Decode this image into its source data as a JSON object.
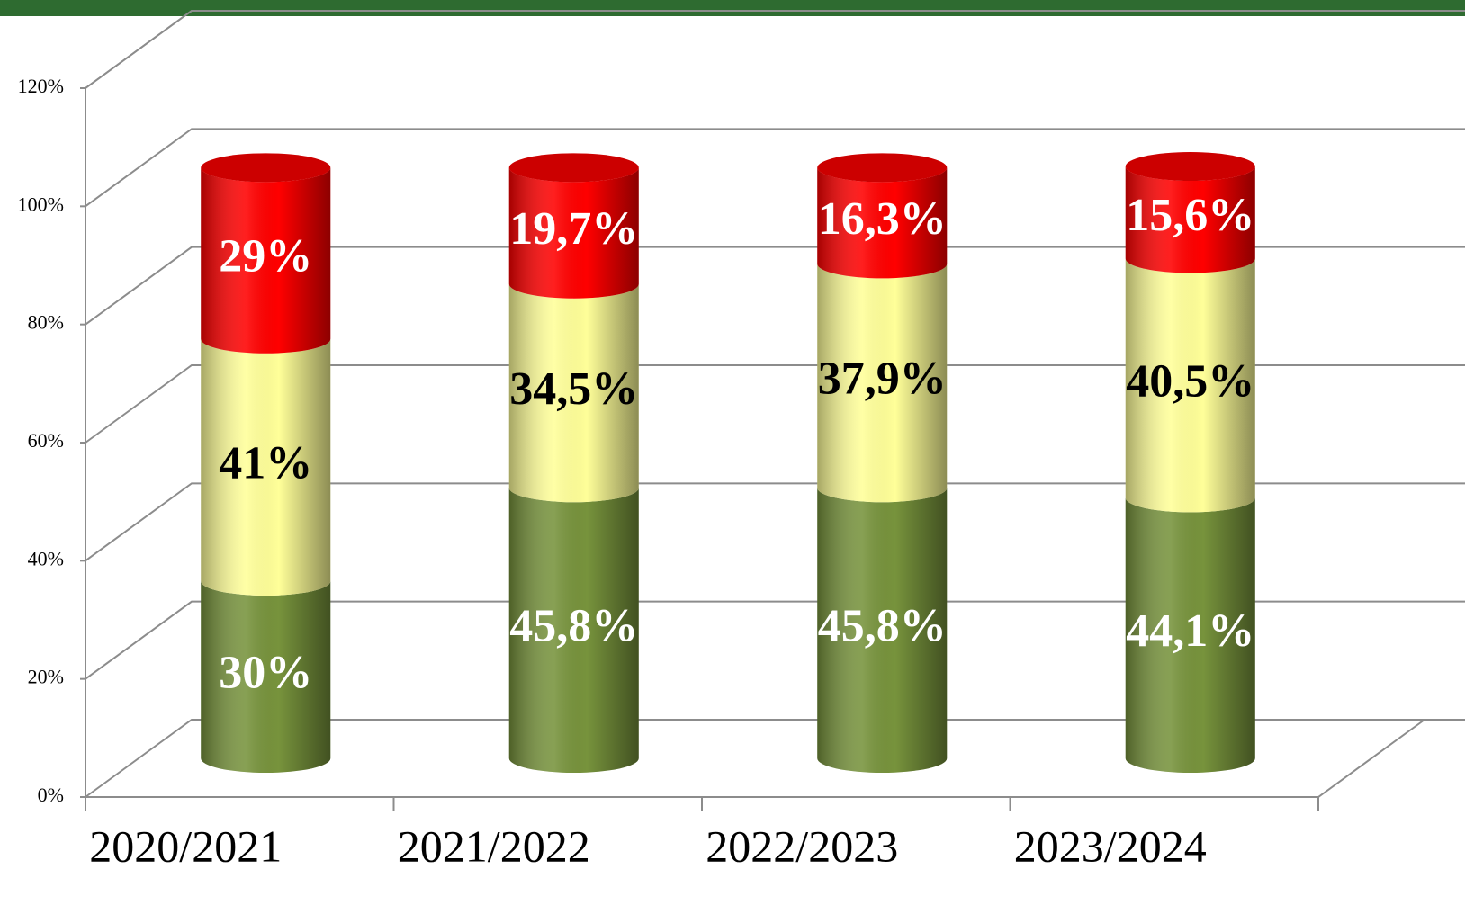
{
  "chart_data": {
    "type": "bar3d-stacked",
    "categories": [
      "2020/2021",
      "2021/2022",
      "2022/2023",
      "2023/2024"
    ],
    "series": [
      {
        "color": "#77933c",
        "values": [
          30,
          45.8,
          45.8,
          44.1
        ],
        "value_labels": [
          "30%",
          "45,8%",
          "45,8%",
          "44,1%"
        ],
        "label_color": "#ffffff"
      },
      {
        "color": "#ffff99",
        "values": [
          41,
          34.5,
          37.9,
          40.5
        ],
        "value_labels": [
          "41%",
          "34,5%",
          "37,9%",
          "40,5%"
        ],
        "label_color": "#000000"
      },
      {
        "color": "#ff0000",
        "values": [
          29,
          19.7,
          16.3,
          15.6
        ],
        "value_labels": [
          "29%",
          "19,7%",
          "16,3%",
          "15,6%"
        ],
        "label_color": "#ffffff"
      }
    ],
    "stacked": true,
    "ylim": [
      0,
      120
    ],
    "yticks": [
      {
        "value": 0,
        "label": "0%"
      },
      {
        "value": 20,
        "label": "20%"
      },
      {
        "value": 40,
        "label": "40%"
      },
      {
        "value": 60,
        "label": "60%"
      },
      {
        "value": 80,
        "label": "80%"
      },
      {
        "value": 100,
        "label": "100%"
      },
      {
        "value": 120,
        "label": "120%"
      }
    ],
    "grid": true
  }
}
